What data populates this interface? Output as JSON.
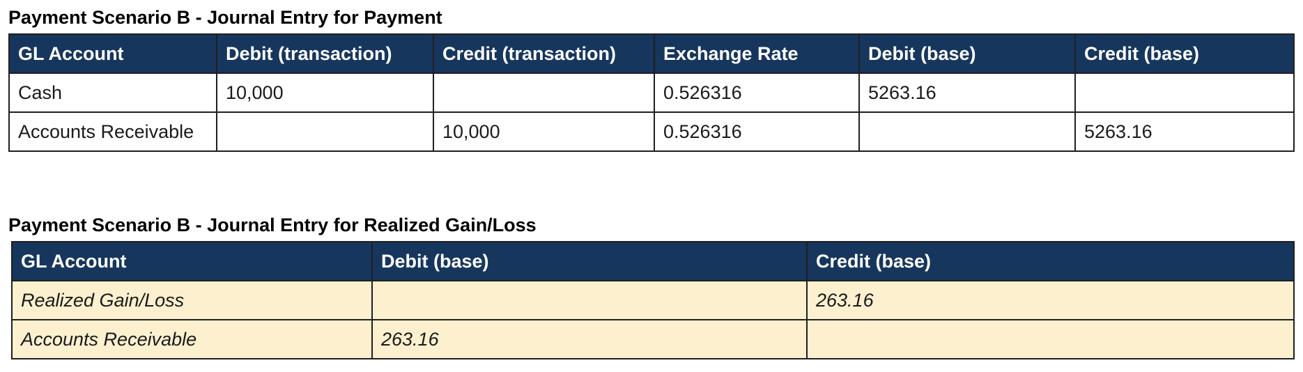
{
  "payment_table": {
    "title": "Payment Scenario B - Journal Entry for Payment",
    "headers": [
      "GL Account",
      "Debit (transaction)",
      "Credit (transaction)",
      "Exchange Rate",
      "Debit (base)",
      "Credit (base)"
    ],
    "rows": [
      [
        "Cash",
        "10,000",
        "",
        "0.526316",
        "5263.16",
        ""
      ],
      [
        "Accounts Receivable",
        "",
        "10,000",
        "0.526316",
        "",
        "5263.16"
      ]
    ]
  },
  "gain_loss_table": {
    "title": "Payment Scenario B - Journal Entry for Realized Gain/Loss",
    "headers": [
      "GL Account",
      "Debit (base)",
      "Credit (base)"
    ],
    "rows": [
      [
        "Realized Gain/Loss",
        "",
        "263.16"
      ],
      [
        "Accounts Receivable",
        "263.16",
        ""
      ]
    ]
  },
  "colors": {
    "header_background": "#17365d",
    "header_text": "#ffffff",
    "highlight_row_background": "#fcf0cf"
  }
}
